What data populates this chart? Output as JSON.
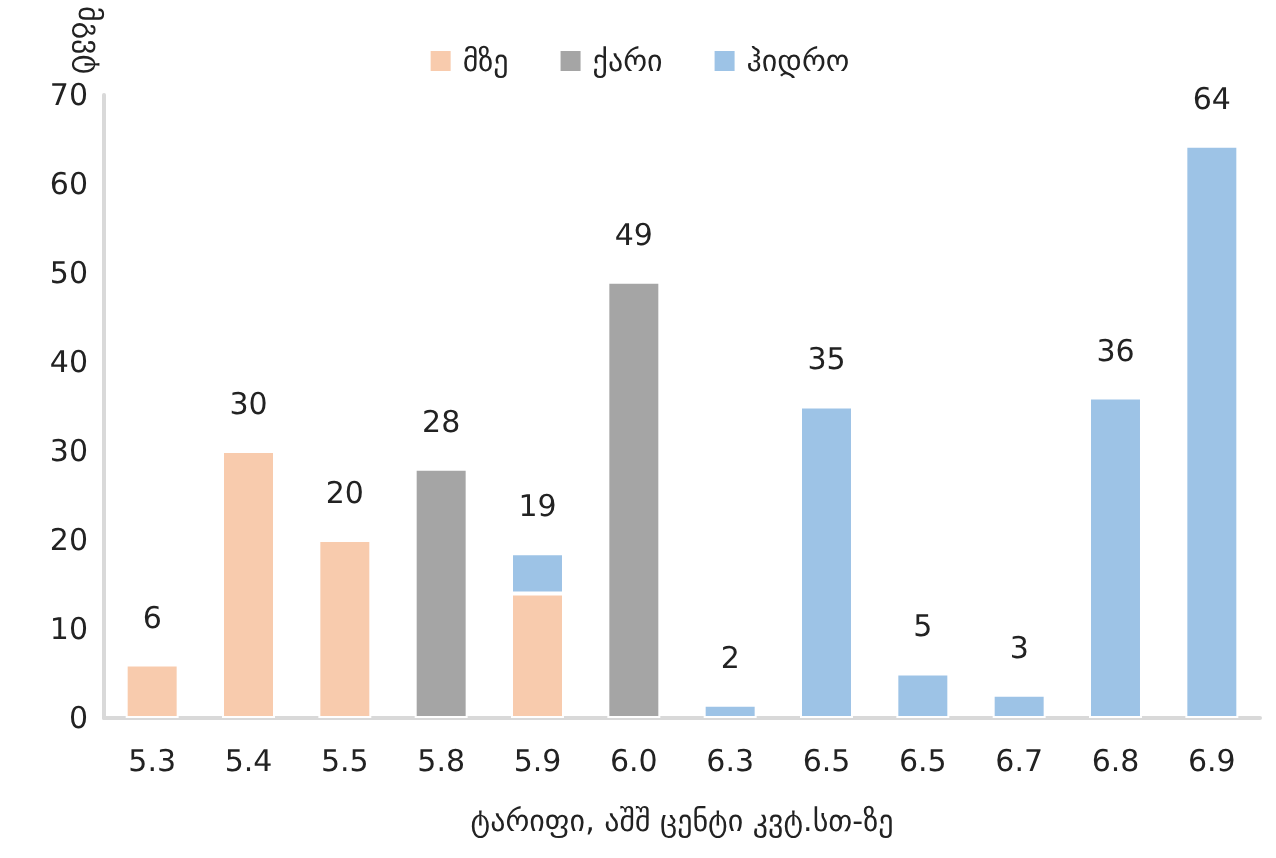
{
  "chart_data": {
    "type": "bar",
    "stacked": true,
    "xlabel": "ტარიფი, აშშ ცენტი კვტ.სთ-ზე",
    "ylabel": "მგვტ",
    "categories": [
      "5.3",
      "5.4",
      "5.5",
      "5.8",
      "5.9",
      "6.0",
      "6.3",
      "6.5",
      "6.5",
      "6.7",
      "6.8",
      "6.9"
    ],
    "series": [
      {
        "name": "მზე",
        "color": "#f8cbad",
        "values": [
          6,
          30,
          20,
          null,
          14,
          null,
          null,
          null,
          null,
          null,
          null,
          null
        ]
      },
      {
        "name": "ქარი",
        "color": "#a5a5a5",
        "values": [
          null,
          null,
          null,
          28,
          null,
          49,
          null,
          null,
          null,
          null,
          null,
          null
        ]
      },
      {
        "name": "ჰიდრო",
        "color": "#9dc3e6",
        "values": [
          null,
          null,
          null,
          null,
          4.5,
          null,
          1.5,
          35,
          5,
          2.6,
          36,
          64.3
        ]
      }
    ],
    "totals": [
      "6",
      "30",
      "20",
      "28",
      "19",
      "49",
      "2",
      "35",
      "5",
      "3",
      "36",
      "64"
    ],
    "ylim": [
      0,
      70
    ],
    "yticks": [
      0,
      10,
      20,
      30,
      40,
      50,
      60,
      70
    ],
    "grid": false,
    "legend": "top"
  }
}
